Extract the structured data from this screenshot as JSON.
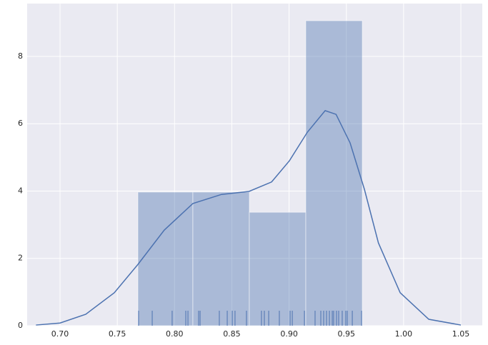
{
  "chart_data": {
    "type": "histogram",
    "bins": [
      0.768,
      0.816,
      0.8653,
      0.9146,
      0.9639
    ],
    "values": [
      3.97,
      3.97,
      3.37,
      9.06
    ],
    "color": "#4c72b0",
    "kde": {
      "x": [
        0.679,
        0.7,
        0.7225,
        0.7474,
        0.768,
        0.791,
        0.816,
        0.841,
        0.865,
        0.8847,
        0.9003,
        0.916,
        0.9315,
        0.941,
        0.9533,
        0.9658,
        0.978,
        0.997,
        1.022,
        1.05
      ],
      "y": [
        0.02,
        0.08,
        0.34,
        0.98,
        1.82,
        2.84,
        3.63,
        3.9,
        3.99,
        4.27,
        4.9,
        5.75,
        6.39,
        6.28,
        5.43,
        4.05,
        2.46,
        0.98,
        0.19,
        0.02
      ]
    },
    "rug": [
      0.7686,
      0.7805,
      0.7979,
      0.8098,
      0.8117,
      0.821,
      0.8223,
      0.8391,
      0.846,
      0.8504,
      0.8528,
      0.8628,
      0.8759,
      0.8784,
      0.8822,
      0.8915,
      0.9009,
      0.9028,
      0.9134,
      0.9227,
      0.9277,
      0.9302,
      0.9327,
      0.9352,
      0.9377,
      0.9389,
      0.9414,
      0.9433,
      0.9464,
      0.9495,
      0.9508,
      0.9552,
      0.9633
    ],
    "xlim": [
      0.6713,
      1.0687
    ],
    "ylim": [
      0,
      9.57
    ],
    "xticks": [
      {
        "value": 0.7,
        "label": "0.70"
      },
      {
        "value": 0.75,
        "label": "0.75"
      },
      {
        "value": 0.8,
        "label": "0.80"
      },
      {
        "value": 0.85,
        "label": "0.85"
      },
      {
        "value": 0.9,
        "label": "0.90"
      },
      {
        "value": 0.95,
        "label": "0.95"
      },
      {
        "value": 1.0,
        "label": "1.00"
      },
      {
        "value": 1.05,
        "label": "1.05"
      }
    ],
    "yticks": [
      0,
      2,
      4,
      6,
      8
    ],
    "grid": true
  }
}
